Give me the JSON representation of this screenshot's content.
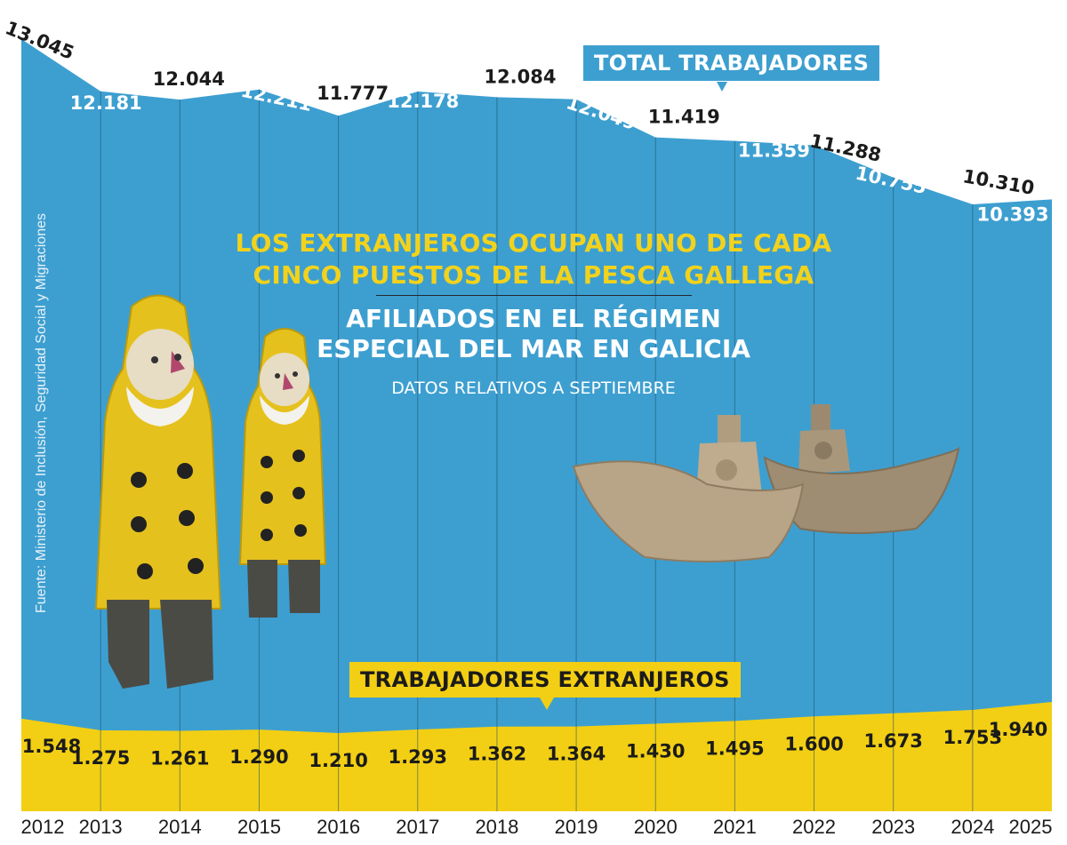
{
  "title": {
    "line1": "LOS EXTRANJEROS OCUPAN UNO DE CADA",
    "line2": "CINCO PUESTOS DE LA PESCA GALLEGA"
  },
  "subtitle": {
    "line1": "AFILIADOS EN EL RÉGIMEN",
    "line2": "ESPECIAL DEL MAR EN GALICIA"
  },
  "note": "DATOS RELATIVOS A SEPTIEMBRE",
  "source": "Fuente: Ministerio de Inclusión, Seguridad Social y Migraciones",
  "colors": {
    "total_area": "#3d9fd0",
    "foreign_area": "#f2cf14",
    "title_yellow": "#f2d21c",
    "dark_label": "#1b1b1b"
  },
  "icons": [
    "fisherman-figure-icon",
    "boat-figure-icon"
  ],
  "chart_data": {
    "type": "area",
    "x": [
      "2012",
      "2013",
      "2014",
      "2015",
      "2016",
      "2017",
      "2018",
      "2019",
      "2020",
      "2021",
      "2022",
      "2023",
      "2024",
      "2025"
    ],
    "series": [
      {
        "name": "TOTAL TRABAJADORES",
        "values": [
          13045,
          12181,
          12044,
          12211,
          11777,
          12178,
          12084,
          12049,
          11419,
          11359,
          11288,
          10755,
          10310,
          10393
        ],
        "labels": [
          "13.045",
          "12.181",
          "12.044",
          "12.211",
          "11.777",
          "12.178",
          "12.084",
          "12.049",
          "11.419",
          "11.359",
          "11.288",
          "10.755",
          "10.310",
          "10.393"
        ]
      },
      {
        "name": "TRABAJADORES EXTRANJEROS",
        "values": [
          1548,
          1275,
          1261,
          1290,
          1210,
          1293,
          1362,
          1364,
          1430,
          1495,
          1600,
          1673,
          1753,
          1940
        ],
        "labels": [
          "1.548",
          "1.275",
          "1.261",
          "1.290",
          "1.210",
          "1.293",
          "1.362",
          "1.364",
          "1.430",
          "1.495",
          "1.600",
          "1.673",
          "1.753",
          "1.940"
        ]
      }
    ],
    "grid": "vertical"
  }
}
